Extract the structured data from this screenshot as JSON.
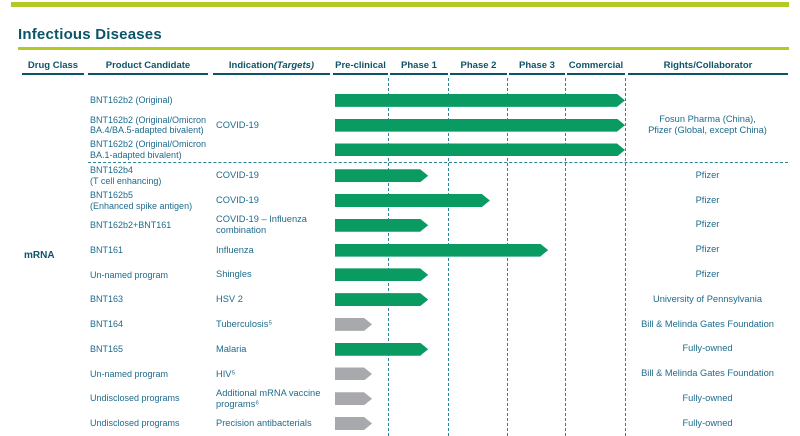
{
  "header": {
    "section_title": "Infectious Diseases"
  },
  "table": {
    "columns": {
      "drug_class": "Drug Class",
      "product_candidate": "Product Candidate",
      "indication_plain": "Indication ",
      "indication_italic": "(Targets)",
      "rights": "Rights/Collaborator"
    },
    "stages": [
      "Pre-clinical",
      "Phase 1",
      "Phase 2",
      "Phase 3",
      "Commercial"
    ],
    "drug_class_value": "mRNA"
  },
  "colors": {
    "brand_lime": "#b5c926",
    "heading_teal": "#0e5468",
    "body_teal": "#1e6b8d",
    "bar_green": "#0a9b62",
    "bar_gray": "#a7a9ac",
    "dashed_line": "#2b8496"
  },
  "chart_data": {
    "type": "bar",
    "orientation": "horizontal",
    "title": "Infectious Diseases",
    "stage_axis": [
      "Pre-clinical",
      "Phase 1",
      "Phase 2",
      "Phase 3",
      "Commercial"
    ],
    "progress_scale": "0 = pipeline start; 1 = end of Pre-clinical; 2 = end of Phase 1; 3 = end of Phase 2; 4 = end of Phase 3; 5 = end of Commercial",
    "drug_class": "mRNA",
    "rows": [
      {
        "product": "BNT162b2 (Original)",
        "indication": "",
        "progress": 5,
        "bar": "green",
        "rights": "",
        "divider_above": false
      },
      {
        "product": "BNT162b2 (Original/Omicron\nBA.4/BA.5-adapted bivalent)",
        "indication": "COVID-19",
        "progress": 5,
        "bar": "green",
        "rights": "Fosun Pharma (China),\nPfizer (Global, except China)",
        "divider_above": false
      },
      {
        "product": "BNT162b2 (Original/Omicron\nBA.1-adapted bivalent)",
        "indication": "",
        "progress": 5,
        "bar": "green",
        "rights": "",
        "divider_above": false
      },
      {
        "product": "BNT162b4\n(T cell enhancing)",
        "indication": "COVID-19",
        "progress": 1.67,
        "bar": "green",
        "rights": "Pfizer",
        "divider_above": true
      },
      {
        "product": "BNT162b5\n(Enhanced spike antigen)",
        "indication": "COVID-19",
        "progress": 2.71,
        "bar": "green",
        "rights": "Pfizer",
        "divider_above": false
      },
      {
        "product": "BNT162b2+BNT161",
        "indication": "COVID-19 – Influenza\ncombination",
        "progress": 1.67,
        "bar": "green",
        "rights": "Pfizer",
        "divider_above": false
      },
      {
        "product": "BNT161",
        "indication": "Influenza",
        "progress": 3.71,
        "bar": "green",
        "rights": "Pfizer",
        "divider_above": false
      },
      {
        "product": "Un-named program",
        "indication": "Shingles",
        "progress": 1.67,
        "bar": "green",
        "rights": "Pfizer",
        "divider_above": false
      },
      {
        "product": "BNT163",
        "indication": "HSV 2",
        "progress": 1.67,
        "bar": "green",
        "rights": "University of Pennsylvania",
        "divider_above": false
      },
      {
        "product": "BNT164",
        "indication": "Tuberculosis⁵",
        "progress": 0.71,
        "bar": "gray",
        "rights": "Bill & Melinda Gates Foundation",
        "divider_above": false
      },
      {
        "product": "BNT165",
        "indication": "Malaria",
        "progress": 1.67,
        "bar": "green",
        "rights": "Fully-owned",
        "divider_above": false
      },
      {
        "product": "Un-named program",
        "indication": "HIV⁵",
        "progress": 0.71,
        "bar": "gray",
        "rights": "Bill & Melinda Gates Foundation",
        "divider_above": false
      },
      {
        "product": "Undisclosed programs",
        "indication": "Additional mRNA vaccine\nprograms⁶",
        "progress": 0.71,
        "bar": "gray",
        "rights": "Fully-owned",
        "divider_above": false
      },
      {
        "product": "Undisclosed programs",
        "indication": "Precision antibacterials",
        "progress": 0.71,
        "bar": "gray",
        "rights": "Fully-owned",
        "divider_above": false
      }
    ]
  }
}
